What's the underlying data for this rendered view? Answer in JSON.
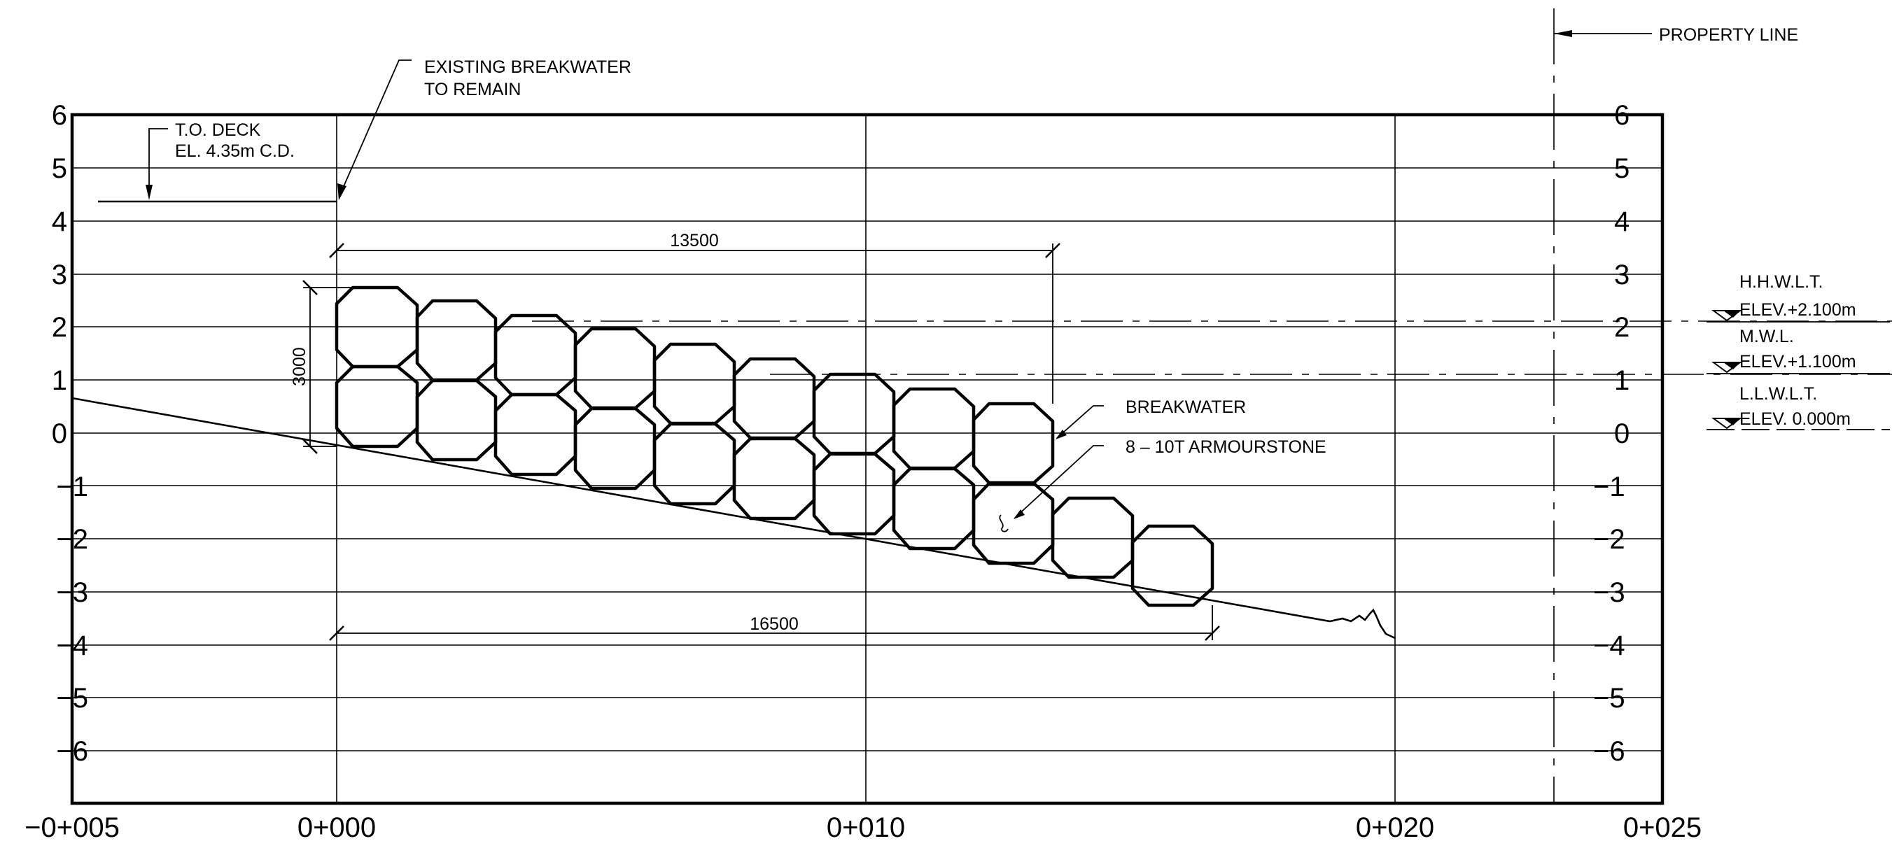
{
  "elevation_labels": [
    "6",
    "5",
    "4",
    "3",
    "2",
    "1",
    "0",
    "−1",
    "−2",
    "−3",
    "−4",
    "−5",
    "−6"
  ],
  "elevation_values": [
    6,
    5,
    4,
    3,
    2,
    1,
    0,
    -1,
    -2,
    -3,
    -4,
    -5,
    -6
  ],
  "stations": [
    {
      "label": "−0+005",
      "chainage": -5
    },
    {
      "label": "0+000",
      "chainage": 0
    },
    {
      "label": "0+010",
      "chainage": 10
    },
    {
      "label": "0+020",
      "chainage": 20
    },
    {
      "label": "0+025",
      "chainage": 25
    }
  ],
  "notes": {
    "property_line": "PROPERTY LINE",
    "existing_breakwater_1": "EXISTING BREAKWATER",
    "existing_breakwater_2": "TO REMAIN",
    "to_deck_1": "T.O. DECK",
    "to_deck_2": "EL. 4.35m C.D.",
    "breakwater": "BREAKWATER",
    "armourstone": "8 – 10T ARMOURSTONE"
  },
  "dimensions": {
    "top_width": "13500",
    "bottom_width": "16500",
    "height": "3000"
  },
  "water_levels": [
    {
      "name": "H.H.W.L.T.",
      "elev": "ELEV.+2.100m",
      "value": 2.1
    },
    {
      "name": "M.W.L.",
      "elev": "ELEV.+1.100m",
      "value": 1.1
    },
    {
      "name": "L.L.W.L.T.",
      "elev": "ELEV. 0.000m",
      "value": 0.0
    }
  ]
}
